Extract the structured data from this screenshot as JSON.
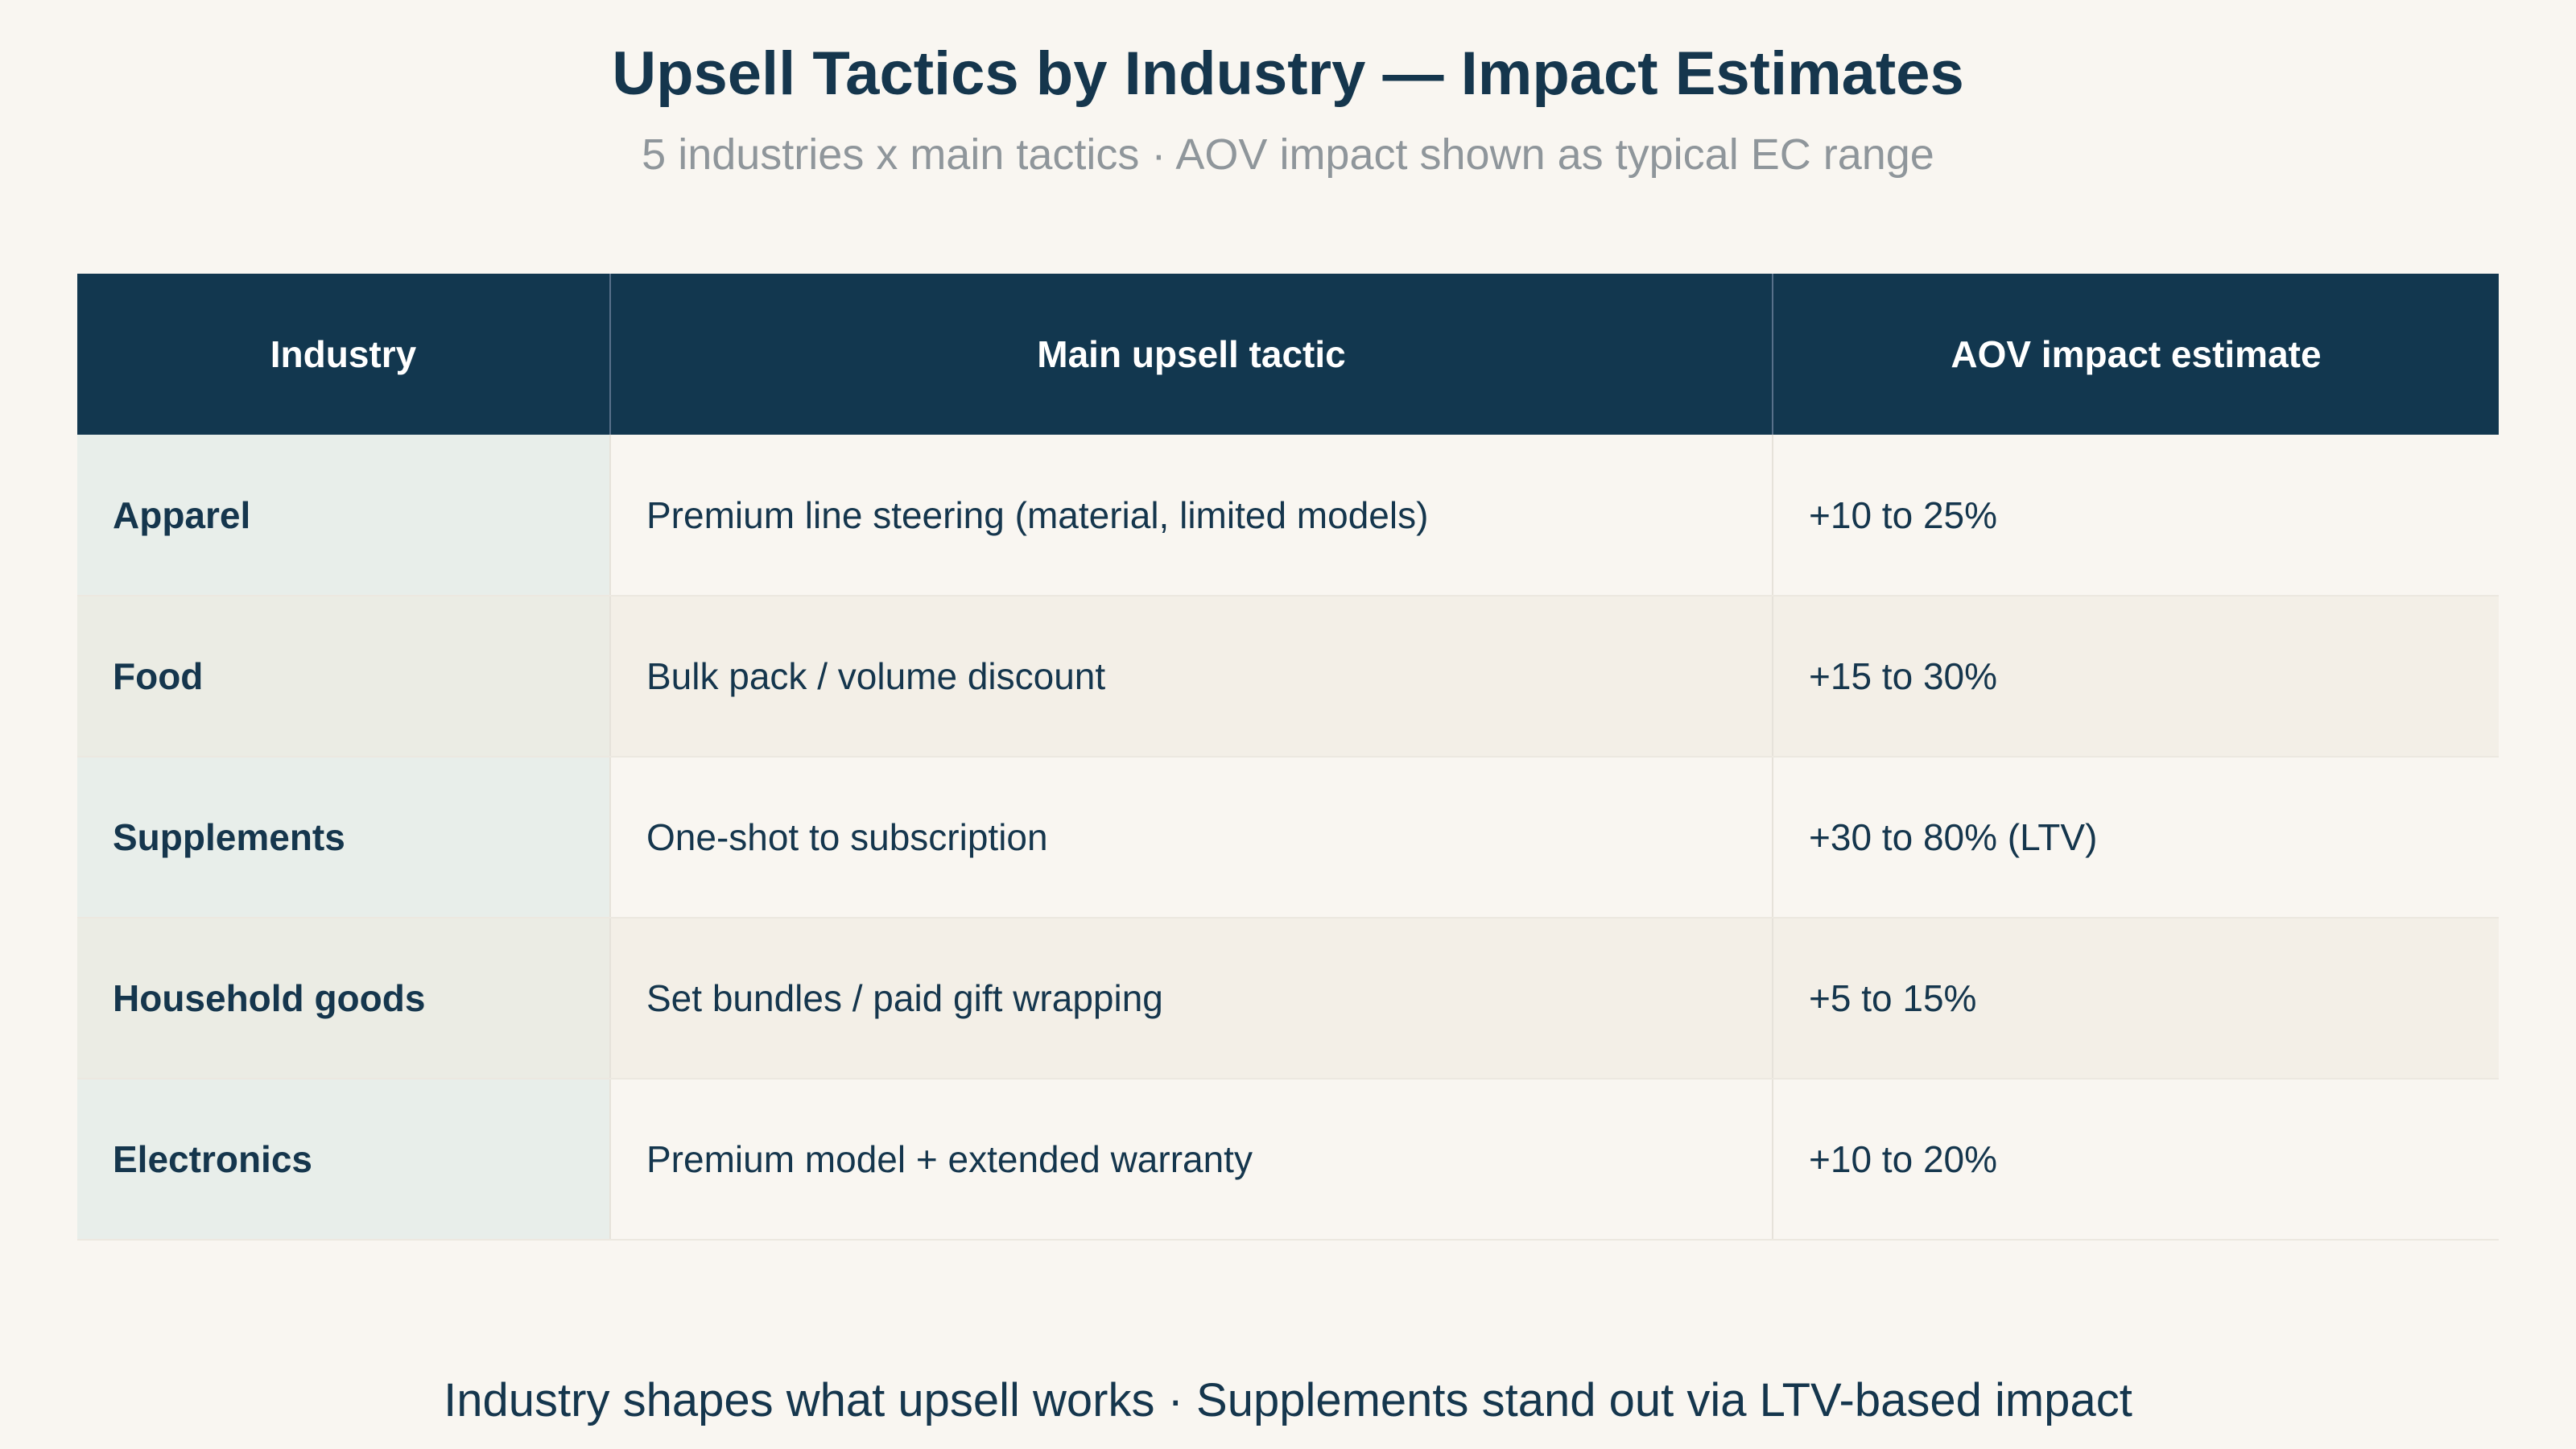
{
  "header": {
    "title": "Upsell Tactics by Industry — Impact Estimates",
    "subtitle": "5 industries x main tactics · AOV impact shown as typical EC range"
  },
  "chart_data": {
    "type": "table",
    "columns": [
      "Industry",
      "Main upsell tactic",
      "AOV impact estimate"
    ],
    "rows": [
      [
        "Apparel",
        "Premium line steering (material, limited models)",
        "+10 to 25%"
      ],
      [
        "Food",
        "Bulk pack / volume discount",
        "+15 to 30%"
      ],
      [
        "Supplements",
        "One-shot to subscription",
        "+30 to 80% (LTV)"
      ],
      [
        "Household goods",
        "Set bundles / paid gift wrapping",
        "+5 to 15%"
      ],
      [
        "Electronics",
        "Premium model + extended warranty",
        "+10 to 20%"
      ]
    ]
  },
  "footer": {
    "note": "Industry shapes what upsell works · Supplements stand out via LTV-based impact"
  },
  "colors": {
    "header_bg": "#12374f",
    "text_dark": "#15364d",
    "subtitle": "#8f969b",
    "page_bg": "#f9f6f1"
  }
}
